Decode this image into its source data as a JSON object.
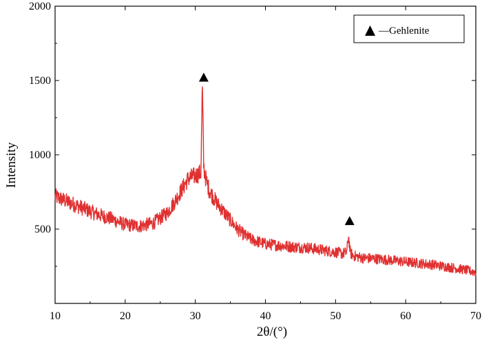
{
  "chart_data": {
    "type": "line",
    "title": "",
    "xlabel": "2θ/(°)",
    "ylabel": "Intensity",
    "xlim": [
      10,
      70
    ],
    "ylim": [
      0,
      2000
    ],
    "x_ticks": [
      10,
      20,
      30,
      40,
      50,
      60,
      70
    ],
    "y_ticks": [
      500,
      1000,
      1500,
      2000
    ],
    "grid": false,
    "legend_position": "top-right",
    "legend": [
      {
        "marker": "triangle",
        "label": "—Gehlenite"
      }
    ],
    "series": [
      {
        "color": "#e03030",
        "x": [
          10,
          12,
          14,
          16,
          18,
          20,
          22,
          24,
          26,
          27,
          28,
          29,
          30,
          30.8,
          31.0,
          31.2,
          31.4,
          31.6,
          32,
          33,
          34,
          35,
          36,
          37,
          38,
          40,
          42,
          44,
          46,
          48,
          50,
          51,
          51.6,
          51.85,
          52.1,
          52.6,
          54,
          56,
          58,
          60,
          62,
          64,
          66,
          68,
          70
        ],
        "y": [
          720,
          680,
          640,
          600,
          570,
          530,
          520,
          540,
          610,
          680,
          760,
          840,
          860,
          880,
          1470,
          920,
          860,
          820,
          760,
          680,
          620,
          560,
          500,
          460,
          430,
          400,
          390,
          380,
          375,
          360,
          345,
          335,
          345,
          455,
          340,
          320,
          305,
          300,
          290,
          280,
          270,
          260,
          245,
          230,
          210
        ]
      }
    ],
    "annotations": [
      {
        "marker": "triangle",
        "x": 31.2,
        "y": 1520
      },
      {
        "marker": "triangle",
        "x": 52.0,
        "y": 555
      }
    ]
  }
}
